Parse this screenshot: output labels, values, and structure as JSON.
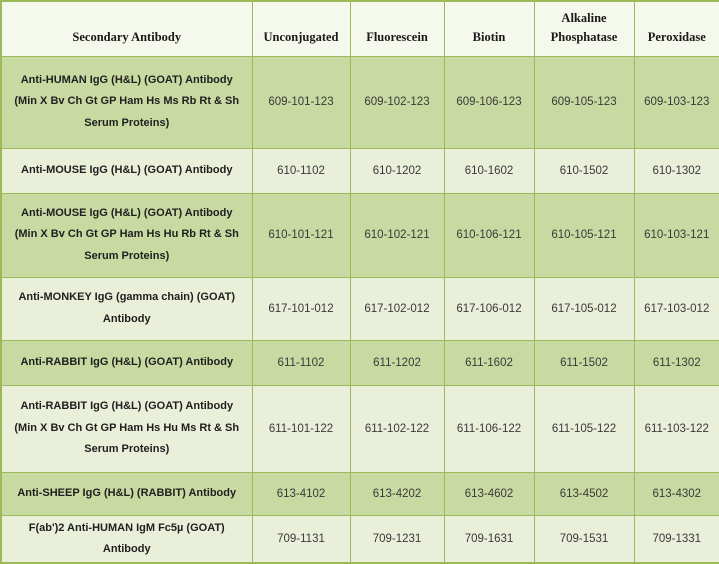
{
  "table": {
    "columns": [
      "Secondary Antibody",
      "Unconjugated",
      "Fluorescein",
      "Biotin",
      "Alkaline Phosphatase",
      "Peroxidase"
    ],
    "rows": [
      {
        "antibody": "Anti-HUMAN IgG (H&L) (GOAT) Antibody (Min X Bv Ch Gt GP Ham Hs Ms Rb Rt & Sh Serum Proteins)",
        "codes": [
          "609-101-123",
          "609-102-123",
          "609-106-123",
          "609-105-123",
          "609-103-123"
        ]
      },
      {
        "antibody": "Anti-MOUSE IgG (H&L) (GOAT) Antibody",
        "codes": [
          "610-1102",
          "610-1202",
          "610-1602",
          "610-1502",
          "610-1302"
        ]
      },
      {
        "antibody": "Anti-MOUSE IgG (H&L) (GOAT) Antibody (Min X Bv Ch Gt GP Ham Hs Hu Rb Rt & Sh Serum Proteins)",
        "codes": [
          "610-101-121",
          "610-102-121",
          "610-106-121",
          "610-105-121",
          "610-103-121"
        ]
      },
      {
        "antibody": "Anti-MONKEY IgG (gamma chain) (GOAT) Antibody",
        "codes": [
          "617-101-012",
          "617-102-012",
          "617-106-012",
          "617-105-012",
          "617-103-012"
        ]
      },
      {
        "antibody": "Anti-RABBIT IgG (H&L) (GOAT) Antibody",
        "codes": [
          "611-1102",
          "611-1202",
          "611-1602",
          "611-1502",
          "611-1302"
        ]
      },
      {
        "antibody": "Anti-RABBIT IgG (H&L) (GOAT) Antibody (Min X Bv Ch Gt GP Ham Hs Hu Ms Rt & Sh Serum Proteins)",
        "codes": [
          "611-101-122",
          "611-102-122",
          "611-106-122",
          "611-105-122",
          "611-103-122"
        ]
      },
      {
        "antibody": "Anti-SHEEP IgG (H&L) (RABBIT) Antibody",
        "codes": [
          "613-4102",
          "613-4202",
          "613-4602",
          "613-4502",
          "613-4302"
        ]
      },
      {
        "antibody": "F(ab')2 Anti-HUMAN IgM Fc5µ (GOAT) Antibody",
        "codes": [
          "709-1131",
          "709-1231",
          "709-1631",
          "709-1531",
          "709-1331"
        ]
      }
    ]
  },
  "colors": {
    "border": "#9CBA5A",
    "header_background": "#F5F8EC",
    "row_dark_green": "#C9D9A2",
    "row_light_green": "#E9EFD9",
    "text": "#1F1F1F"
  }
}
